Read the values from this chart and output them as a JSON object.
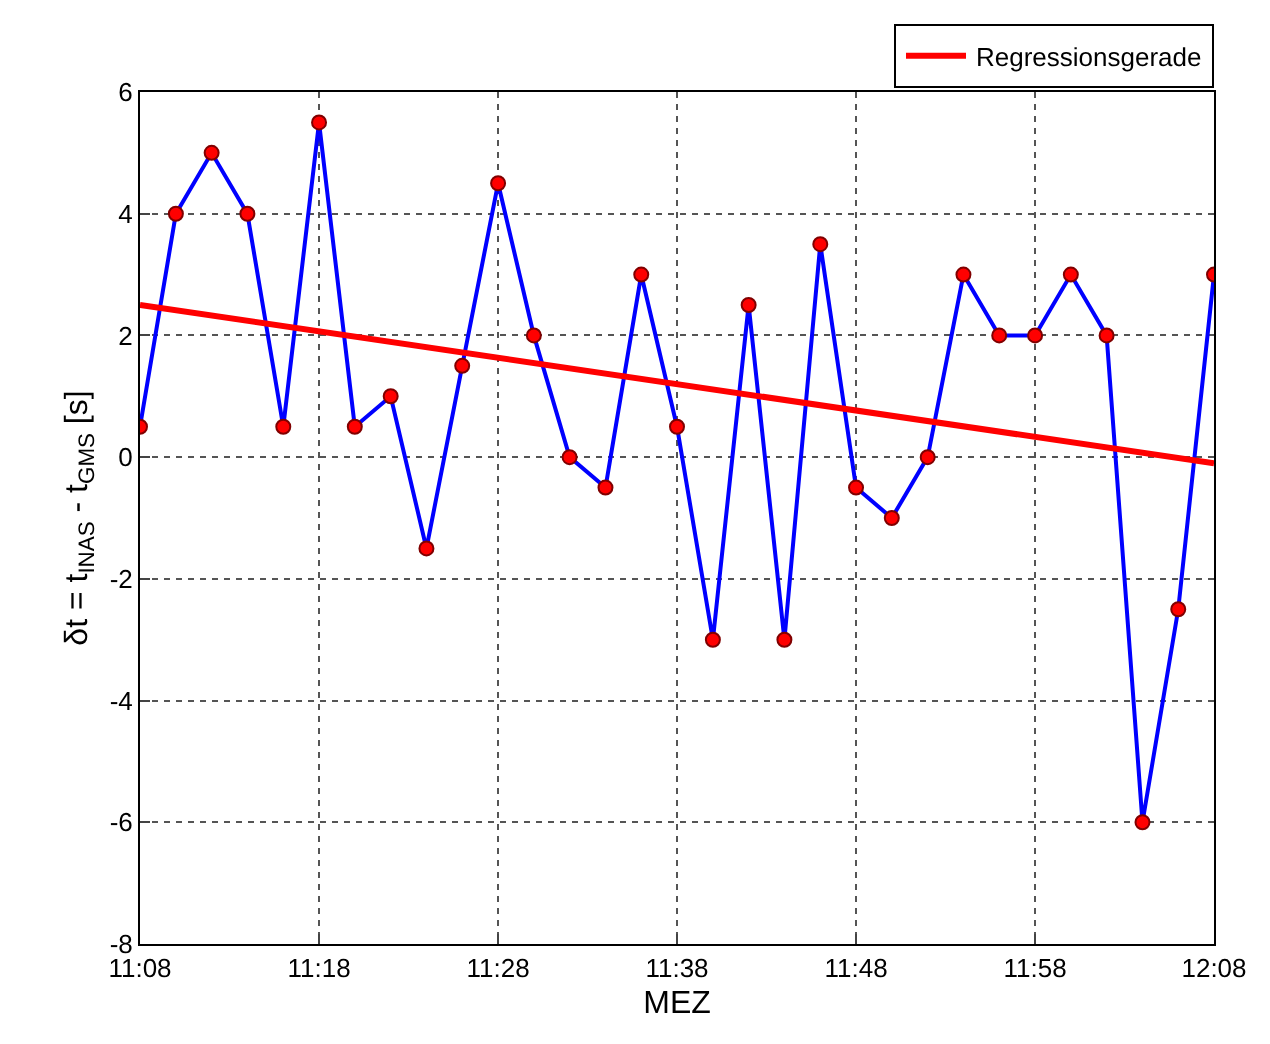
{
  "chart_data": {
    "type": "line",
    "xlabel": "MEZ",
    "ylabel": "δt = t$_{INAS}$ - t$_{GMS}$ [s]",
    "xlim": [
      11.1333,
      12.1333
    ],
    "ylim": [
      -8,
      6
    ],
    "xticks": [
      {
        "value": 11.1333,
        "label": "11:08"
      },
      {
        "value": 11.3,
        "label": "11:18"
      },
      {
        "value": 11.4667,
        "label": "11:28"
      },
      {
        "value": 11.6333,
        "label": "11:38"
      },
      {
        "value": 11.8,
        "label": "11:48"
      },
      {
        "value": 11.9667,
        "label": "11:58"
      },
      {
        "value": 12.1333,
        "label": "12:08"
      }
    ],
    "yticks": [
      -8,
      -6,
      -4,
      -2,
      0,
      2,
      4,
      6
    ],
    "grid": true,
    "legend": "top right",
    "line_style": "solid",
    "series": [
      {
        "color": "#0000ff",
        "marker": "circle",
        "colors": [
          "#ff0000",
          "#ff0000",
          "#ff0000",
          "#ff0000",
          "#ff0000",
          "#ff0000",
          "#ff0000",
          "#ff0000",
          "#ff0000",
          "#ff0000",
          "#ff0000",
          "#ff0000",
          "#ff0000",
          "#ff0000",
          "#ff0000",
          "#ff0000",
          "#ff0000",
          "#ff0000",
          "#ff0000",
          "#ff0000",
          "#ff0000",
          "#ff0000",
          "#ff0000",
          "#ff0000",
          "#ff0000",
          "#ff0000",
          "#ff0000",
          "#ff0000",
          "#ff0000",
          "#ff0000",
          "#ff0000"
        ],
        "x": [
          11.1333,
          11.1667,
          11.2,
          11.2333,
          11.2667,
          11.3,
          11.3333,
          11.3667,
          11.4,
          11.4333,
          11.4667,
          11.5,
          11.5333,
          11.5667,
          11.6,
          11.6333,
          11.6667,
          11.7,
          11.7333,
          11.7667,
          11.8,
          11.8333,
          11.8667,
          11.9,
          11.9333,
          11.9667,
          12.0,
          12.0333,
          12.0667,
          12.1,
          12.1333
        ],
        "values": [
          0.5,
          4,
          5,
          4,
          0.5,
          5.5,
          0.5,
          1,
          -1.5,
          1.5,
          4.5,
          2,
          0,
          -0.5,
          3,
          0.5,
          -3,
          2.5,
          -3,
          3.5,
          -0.5,
          -1,
          0,
          3,
          2,
          2,
          3,
          2,
          -6,
          -2.5,
          3
        ]
      },
      {
        "name": "Regressionsgerade",
        "color": "#ff0000",
        "marker": "none",
        "x": [
          11.1333,
          12.1333
        ],
        "values": [
          2.5,
          -0.1
        ]
      }
    ]
  }
}
